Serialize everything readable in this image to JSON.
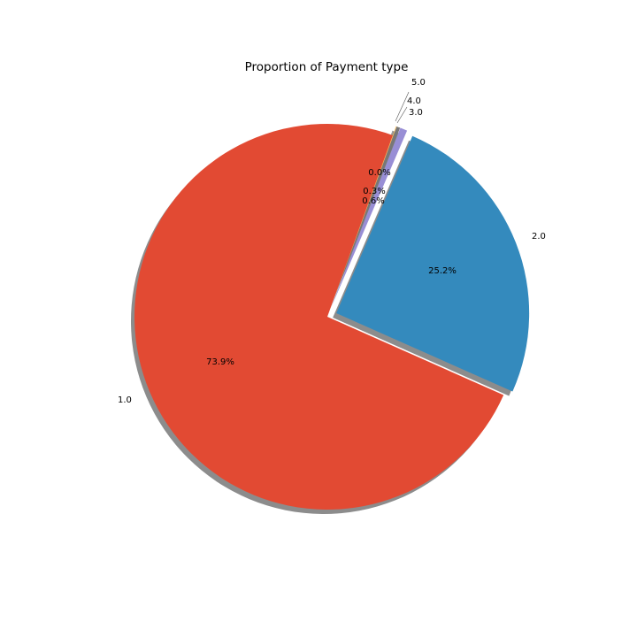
{
  "chart_data": {
    "type": "pie",
    "title": "Proportion of Payment type",
    "categories": [
      "1.0",
      "2.0",
      "3.0",
      "4.0",
      "5.0"
    ],
    "values": [
      73.9,
      25.2,
      0.6,
      0.3,
      0.0
    ],
    "percent_labels": [
      "73.9%",
      "25.2%",
      "0.6%",
      "0.3%",
      "0.0%"
    ],
    "exploded": [
      false,
      true,
      true,
      true,
      true
    ],
    "shadow": true,
    "colors": [
      "#E24A33",
      "#348ABD",
      "#988ED5",
      "#777777",
      "#FBC15E"
    ]
  }
}
